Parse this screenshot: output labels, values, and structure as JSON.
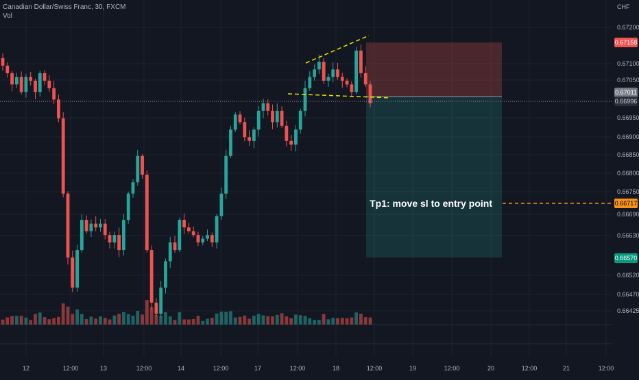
{
  "legend": {
    "symbol": "Canadian Dollar/Swiss Franc, 30, FXCM",
    "volume": "Vol"
  },
  "colors": {
    "background": "#131722",
    "grid": "#1f2331",
    "up": "#26a69a",
    "down": "#ef5350",
    "axis_text": "#b2b5be",
    "stop_zone": "#ef5350",
    "target_zone": "#26a69a",
    "pattern_line": "#e5e500",
    "annotation_line": "#f7931a"
  },
  "axis": {
    "currency": "CHF",
    "price_ticks": [
      "0.67200",
      "0.67100",
      "0.67050",
      "0.66950",
      "0.66900",
      "0.66850",
      "0.66800",
      "0.66750",
      "0.66690",
      "0.66630",
      "0.66520",
      "0.66470",
      "0.66425"
    ],
    "time_ticks": [
      "12",
      "12:00",
      "13",
      "12:00",
      "14",
      "12:00",
      "17",
      "12:00",
      "18",
      "12:00",
      "19",
      "12:00",
      "20",
      "12:00",
      "21",
      "12:00"
    ]
  },
  "price_labels": {
    "stop": "0.67158",
    "entry": "0.67011",
    "last": "0.66996",
    "tp1": "0.66717",
    "target": "0.66570"
  },
  "annotation": {
    "text": "Tp1: move sl to entry point"
  },
  "chart_data": {
    "type": "candlestick",
    "symbol": "Canadian Dollar/Swiss Franc",
    "interval": "30",
    "broker": "FXCM",
    "y_unit": "CHF",
    "ylim": [
      0.664,
      0.6725
    ],
    "x_tick_labels": [
      "12",
      "12:00",
      "13",
      "12:00",
      "14",
      "12:00",
      "17",
      "12:00",
      "18",
      "12:00",
      "19",
      "12:00",
      "20",
      "12:00",
      "21",
      "12:00"
    ],
    "y_tick_labels": [
      "0.67200",
      "0.67100",
      "0.67050",
      "0.66950",
      "0.66900",
      "0.66850",
      "0.66800",
      "0.66750",
      "0.66690",
      "0.66630",
      "0.66520",
      "0.66470",
      "0.66425"
    ],
    "close_path": [
      0.6709,
      0.6707,
      0.6704,
      0.6706,
      0.6702,
      0.6706,
      0.6705,
      0.6702,
      0.6707,
      0.6705,
      0.6703,
      0.67,
      0.6695,
      0.6675,
      0.6658,
      0.665,
      0.666,
      0.6668,
      0.6665,
      0.6667,
      0.6666,
      0.6667,
      0.6664,
      0.6662,
      0.6664,
      0.666,
      0.6668,
      0.6675,
      0.6678,
      0.6685,
      0.668,
      0.666,
      0.6646,
      0.6643,
      0.665,
      0.6657,
      0.6662,
      0.666,
      0.6668,
      0.6666,
      0.6665,
      0.6664,
      0.6662,
      0.6663,
      0.6664,
      0.6662,
      0.6669,
      0.6675,
      0.6685,
      0.6692,
      0.6696,
      0.6694,
      0.669,
      0.6689,
      0.6692,
      0.6697,
      0.6699,
      0.6697,
      0.6694,
      0.6697,
      0.6693,
      0.6689,
      0.6688,
      0.6692,
      0.6697,
      0.6703,
      0.6706,
      0.6708,
      0.671,
      0.6705,
      0.6706,
      0.6708,
      0.6706,
      0.6705,
      0.6704,
      0.6702,
      0.6713,
      0.6707,
      0.6704,
      0.6699
    ],
    "positions": [
      {
        "type": "short",
        "entry": 0.67011,
        "stop": 0.67158,
        "target": 0.6657
      }
    ],
    "levels": [
      {
        "label": "Tp1: move sl to entry point",
        "price": 0.66717
      }
    ],
    "patterns": [
      {
        "kind": "rising wedge",
        "upper_trendline": true,
        "lower_support": true
      }
    ],
    "volume": true
  }
}
